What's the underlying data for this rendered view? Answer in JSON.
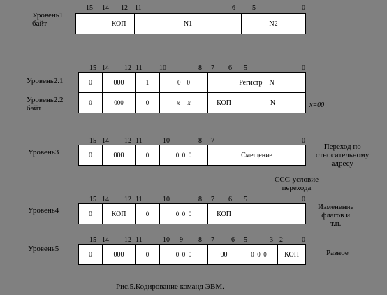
{
  "levels": [
    {
      "label": "Уровень1\nбайт",
      "bits": [
        "15",
        "14",
        "12",
        "11",
        "6",
        "5",
        "0"
      ],
      "cells": [
        "",
        "КОП",
        "N1",
        "N2"
      ]
    },
    {
      "label": "Уровень2.1",
      "bits": [
        "15",
        "14",
        "12",
        "11",
        "10",
        "8",
        "7",
        "6",
        "5",
        "0"
      ],
      "cells": [
        "0",
        "000",
        "1",
        "0    0",
        "Регистр    N"
      ]
    },
    {
      "label": "Уровень2.2\nбайт",
      "bits": [],
      "cells": [
        "0",
        "000",
        "0",
        "x     x",
        "КОП",
        "N"
      ],
      "note": "x=00"
    },
    {
      "label": "Уровень3",
      "bits": [
        "15",
        "14",
        "12",
        "11",
        "10",
        "8",
        "7",
        "0"
      ],
      "cells": [
        "0",
        "000",
        "0",
        "0  0  0",
        "Смещение"
      ],
      "note": "Переход по\nотносительному\nадресу"
    },
    {
      "label": "Уровень4",
      "bits": [
        "15",
        "14",
        "12",
        "11",
        "10",
        "8",
        "7",
        "6",
        "5",
        "0"
      ],
      "cells": [
        "0",
        "КОП",
        "0",
        "0  0  0",
        "КОП",
        ""
      ],
      "note": "Изменение\nфлагов и\nт.п.",
      "above": "ССС-условие\nперехода"
    },
    {
      "label": "Уровень5",
      "bits": [
        "15",
        "14",
        "12",
        "11",
        "10",
        "9",
        "8",
        "7",
        "6",
        "5",
        "3",
        "2",
        "0"
      ],
      "cells": [
        "0",
        "000",
        "0",
        "0  0  0",
        "00",
        "0  0  0",
        "КОП"
      ],
      "note": "Разное"
    }
  ],
  "caption": "Рис.5.Кодирование команд ЭВМ."
}
